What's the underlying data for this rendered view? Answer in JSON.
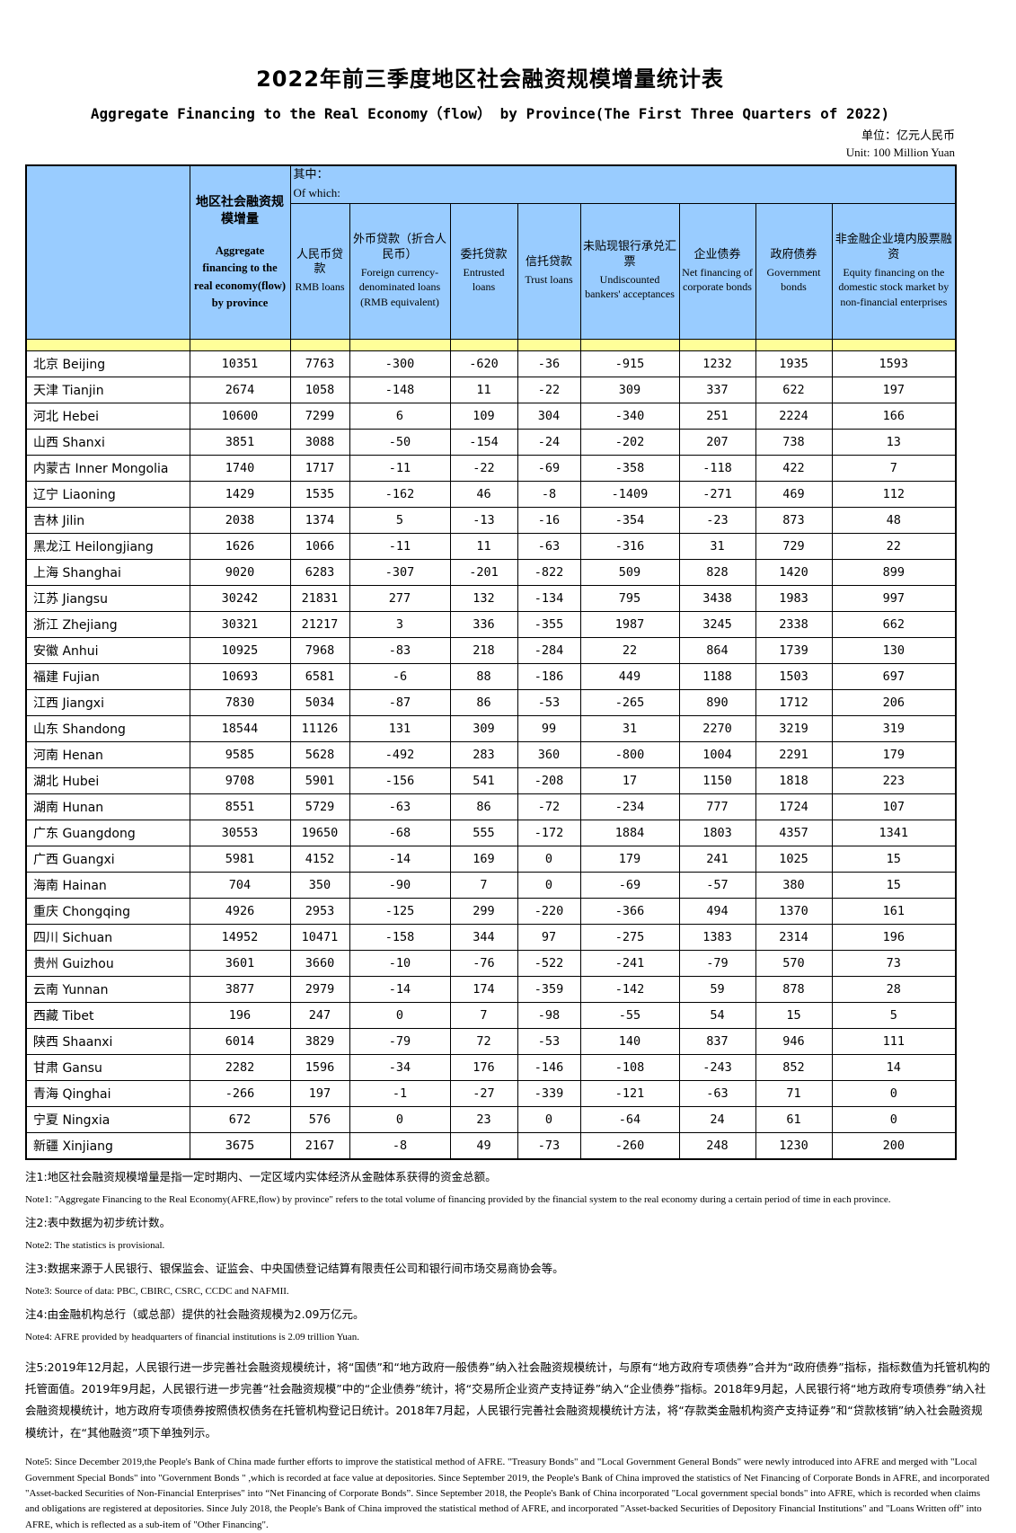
{
  "title_zh": "2022年前三季度地区社会融资规模增量统计表",
  "title_en": "Aggregate Financing to the Real Economy（flow） by Province(The First Three Quarters of 2022)",
  "unit_zh": "单位：亿元人民币",
  "unit_en": "Unit: 100 Million Yuan",
  "colors": {
    "header_bg": "#99CCFF",
    "stripe_bg": "#FFFF99",
    "border": "#000000"
  },
  "table": {
    "aggregate_header": {
      "zh": "地区社会融资规模增量",
      "en": "Aggregate financing to the real economy(flow) by province"
    },
    "of_which": {
      "zh": "其中：",
      "en": "Of which:"
    },
    "columns": [
      {
        "zh": "人民币贷款",
        "en": "RMB loans"
      },
      {
        "zh": "外币贷款（折合人民币）",
        "en": "Foreign currency-denominated loans (RMB equivalent)"
      },
      {
        "zh": "委托贷款",
        "en": "Entrusted loans"
      },
      {
        "zh": "信托贷款",
        "en": "Trust loans"
      },
      {
        "zh": "未贴现银行承兑汇票",
        "en": "Undiscounted bankers' acceptances"
      },
      {
        "zh": "企业债券",
        "en": "Net financing of corporate bonds"
      },
      {
        "zh": "政府债券",
        "en": "Government bonds"
      },
      {
        "zh": "非金融企业境内股票融资",
        "en": "Equity financing on the domestic stock market by non-financial enterprises"
      }
    ],
    "rows": [
      {
        "province": "北京 Beijing",
        "values": [
          10351,
          7763,
          -300,
          -620,
          -36,
          -915,
          1232,
          1935,
          1593
        ]
      },
      {
        "province": "天津 Tianjin",
        "values": [
          2674,
          1058,
          -148,
          11,
          -22,
          309,
          337,
          622,
          197
        ]
      },
      {
        "province": "河北 Hebei",
        "values": [
          10600,
          7299,
          6,
          109,
          304,
          -340,
          251,
          2224,
          166
        ]
      },
      {
        "province": "山西 Shanxi",
        "values": [
          3851,
          3088,
          -50,
          -154,
          -24,
          -202,
          207,
          738,
          13
        ]
      },
      {
        "province": "内蒙古 Inner Mongolia",
        "values": [
          1740,
          1717,
          -11,
          -22,
          -69,
          -358,
          -118,
          422,
          7
        ]
      },
      {
        "province": "辽宁 Liaoning",
        "values": [
          1429,
          1535,
          -162,
          46,
          -8,
          -1409,
          -271,
          469,
          112
        ]
      },
      {
        "province": "吉林 Jilin",
        "values": [
          2038,
          1374,
          5,
          -13,
          -16,
          -354,
          -23,
          873,
          48
        ]
      },
      {
        "province": "黑龙江 Heilongjiang",
        "values": [
          1626,
          1066,
          -11,
          11,
          -63,
          -316,
          31,
          729,
          22
        ]
      },
      {
        "province": "上海 Shanghai",
        "values": [
          9020,
          6283,
          -307,
          -201,
          -822,
          509,
          828,
          1420,
          899
        ]
      },
      {
        "province": "江苏 Jiangsu",
        "values": [
          30242,
          21831,
          277,
          132,
          -134,
          795,
          3438,
          1983,
          997
        ]
      },
      {
        "province": "浙江 Zhejiang",
        "values": [
          30321,
          21217,
          3,
          336,
          -355,
          1987,
          3245,
          2338,
          662
        ]
      },
      {
        "province": "安徽 Anhui",
        "values": [
          10925,
          7968,
          -83,
          218,
          -284,
          22,
          864,
          1739,
          130
        ]
      },
      {
        "province": "福建 Fujian",
        "values": [
          10693,
          6581,
          -6,
          88,
          -186,
          449,
          1188,
          1503,
          697
        ]
      },
      {
        "province": "江西 Jiangxi",
        "values": [
          7830,
          5034,
          -87,
          86,
          -53,
          -265,
          890,
          1712,
          206
        ]
      },
      {
        "province": "山东 Shandong",
        "values": [
          18544,
          11126,
          131,
          309,
          99,
          31,
          2270,
          3219,
          319
        ]
      },
      {
        "province": "河南 Henan",
        "values": [
          9585,
          5628,
          -492,
          283,
          360,
          -800,
          1004,
          2291,
          179
        ]
      },
      {
        "province": "湖北 Hubei",
        "values": [
          9708,
          5901,
          -156,
          541,
          -208,
          17,
          1150,
          1818,
          223
        ]
      },
      {
        "province": "湖南 Hunan",
        "values": [
          8551,
          5729,
          -63,
          86,
          -72,
          -234,
          777,
          1724,
          107
        ]
      },
      {
        "province": "广东 Guangdong",
        "values": [
          30553,
          19650,
          -68,
          555,
          -172,
          1884,
          1803,
          4357,
          1341
        ]
      },
      {
        "province": "广西 Guangxi",
        "values": [
          5981,
          4152,
          -14,
          169,
          0,
          179,
          241,
          1025,
          15
        ]
      },
      {
        "province": "海南 Hainan",
        "values": [
          704,
          350,
          -90,
          7,
          0,
          -69,
          -57,
          380,
          15
        ]
      },
      {
        "province": "重庆 Chongqing",
        "values": [
          4926,
          2953,
          -125,
          299,
          -220,
          -366,
          494,
          1370,
          161
        ]
      },
      {
        "province": "四川 Sichuan",
        "values": [
          14952,
          10471,
          -158,
          344,
          97,
          -275,
          1383,
          2314,
          196
        ]
      },
      {
        "province": "贵州 Guizhou",
        "values": [
          3601,
          3660,
          -10,
          -76,
          -522,
          -241,
          -79,
          570,
          73
        ]
      },
      {
        "province": "云南 Yunnan",
        "values": [
          3877,
          2979,
          -14,
          174,
          -359,
          -142,
          59,
          878,
          28
        ]
      },
      {
        "province": "西藏 Tibet",
        "values": [
          196,
          247,
          0,
          7,
          -98,
          -55,
          54,
          15,
          5
        ]
      },
      {
        "province": "陕西 Shaanxi",
        "values": [
          6014,
          3829,
          -79,
          72,
          -53,
          140,
          837,
          946,
          111
        ]
      },
      {
        "province": "甘肃 Gansu",
        "values": [
          2282,
          1596,
          -34,
          176,
          -146,
          -108,
          -243,
          852,
          14
        ]
      },
      {
        "province": "青海 Qinghai",
        "values": [
          -266,
          197,
          -1,
          -27,
          -339,
          -121,
          -63,
          71,
          0
        ]
      },
      {
        "province": "宁夏 Ningxia",
        "values": [
          672,
          576,
          0,
          23,
          0,
          -64,
          24,
          61,
          0
        ]
      },
      {
        "province": "新疆 Xinjiang",
        "values": [
          3675,
          2167,
          -8,
          49,
          -73,
          -260,
          248,
          1230,
          200
        ]
      }
    ]
  },
  "notes": [
    {
      "lang": "zh",
      "long": false,
      "text": "注1:地区社会融资规模增量是指一定时期内、一定区域内实体经济从金融体系获得的资金总额。"
    },
    {
      "lang": "en",
      "long": false,
      "text": "Note1: \"Aggregate Financing to the Real Economy(AFRE,flow) by province\" refers to the total volume of financing provided by the financial system to the real economy during a certain period of time in each province."
    },
    {
      "lang": "zh",
      "long": false,
      "text": "注2:表中数据为初步统计数。"
    },
    {
      "lang": "en",
      "long": false,
      "text": "Note2: The statistics is provisional."
    },
    {
      "lang": "zh",
      "long": false,
      "text": "注3:数据来源于人民银行、银保监会、证监会、中央国债登记结算有限责任公司和银行间市场交易商协会等。"
    },
    {
      "lang": "en",
      "long": false,
      "text": "Note3: Source of data: PBC, CBIRC, CSRC, CCDC and NAFMII."
    },
    {
      "lang": "zh",
      "long": false,
      "text": "注4:由金融机构总行（或总部）提供的社会融资规模为2.09万亿元。"
    },
    {
      "lang": "en",
      "long": false,
      "text": "Note4: AFRE provided by headquarters of financial institutions is 2.09 trillion Yuan."
    },
    {
      "lang": "zh",
      "long": true,
      "text": "注5:2019年12月起，人民银行进一步完善社会融资规模统计，将“国债”和“地方政府一般债券”纳入社会融资规模统计，与原有“地方政府专项债券”合并为“政府债券”指标，指标数值为托管机构的托管面值。2019年9月起，人民银行进一步完善“社会融资规模”中的“企业债券”统计，将“交易所企业资产支持证券”纳入“企业债券”指标。2018年9月起，人民银行将“地方政府专项债券”纳入社会融资规模统计，地方政府专项债券按照债权债务在托管机构登记日统计。2018年7月起，人民银行完善社会融资规模统计方法，将“存款类金融机构资产支持证券”和“贷款核销”纳入社会融资规模统计，在“其他融资”项下单独列示。"
    },
    {
      "lang": "en",
      "long": true,
      "text": "Note5:  Since December 2019,the People's Bank of China made further efforts to improve the statistical method of AFRE. \"Treasury Bonds\" and \"Local Government General Bonds\" were newly introduced into AFRE and merged with  \"Local Government Special Bonds\" into \"Government Bonds \" ,which is recorded at face value at depositories. Since September 2019, the People's Bank of China improved the statistics of Net Financing of Corporate Bonds in AFRE, and incorporated \"Asset-backed Securities of Non-Financial Enterprises\" into “Net Financing of Corporate Bonds”.  Since September 2018, the People's Bank of China incorporated \"Local government special bonds\" into AFRE, which is recorded when claims and obligations are registered at depositories. Since July 2018, the People's Bank of China improved the statistical method of AFRE, and incorporated \"Asset-backed Securities of Depository Financial Institutions\" and \"Loans Written off\" into AFRE, which is reflected as a sub-item of \"Other Financing\"."
    }
  ]
}
